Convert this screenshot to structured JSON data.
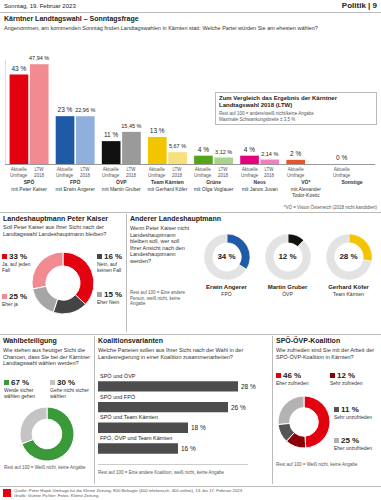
{
  "page": {
    "date": "Sonntag, 19. Februar 2023",
    "section": "Politik | 9",
    "source": "Quelle: Peter Hajek Umfrage für die Kleine Zeitung, 800 Befragte (400 telefonisch, 400 online), 13. bis 17. Februar 2023",
    "credit": "Grafik: Günter Pichler; Fotos: Kleine Zeitung"
  },
  "chart_data": [
    {
      "type": "bar",
      "title": "Kärntner Landtagswahl – Sonntagsfrage",
      "subtitle": "Angenommen, am kommenden Sonntag finden Landtagswahlen in Kärnten statt: Welche Partei würden Sie am ehesten wählen?",
      "categories": [
        "SPÖ",
        "FPÖ",
        "ÖVP",
        "Team Kärnten",
        "Grüne",
        "Neos",
        "VÖ*",
        "Sonstige"
      ],
      "candidates": [
        "mit Peter Kaiser",
        "mit Erwin Angerer",
        "mit Martin Gruber",
        "mit Gerhard Köfer",
        "mit Olga Voglauer",
        "mit Janos Juvan",
        "mit Alexander Todor-Kostic",
        null
      ],
      "series": [
        {
          "name": "Aktuelle Umfrage",
          "colors": [
            "#e3000f",
            "#1f5aa6",
            "#111111",
            "#f2c500",
            "#55a51c",
            "#e5007d",
            "#e8552a",
            "#999999"
          ],
          "values": [
            43,
            23,
            11,
            13,
            4,
            4,
            2,
            0
          ],
          "value_labels": [
            "43 %",
            "23 %",
            "11 %",
            "13 %",
            "4 %",
            "4 %",
            "2 %",
            "0 %"
          ]
        },
        {
          "name": "LTW 2018",
          "colors": [
            "#f28b91",
            "#8fb0dc",
            "#9a9a9a",
            "#f7e07a",
            "#a8d48a",
            "#f27fbf",
            "#f4a98f",
            "#cccccc"
          ],
          "values": [
            47.94,
            22.96,
            15.45,
            5.67,
            3.12,
            2.14,
            null,
            null
          ],
          "value_labels": [
            "47,94 %",
            "22,96 %",
            "15,45 %",
            "5,67 %",
            "3,12 %",
            "2,14 %",
            null,
            null
          ]
        }
      ],
      "annotations": [
        "Zum Vergleich das Ergebnis der Kärntner Landtagswahl 2018 (LTW)",
        "Rest auf 100 = andere/weiß nicht/keine Angabe",
        "Maximale Schwankungsbreite ± 3,5 %",
        "*VÖ = Vision Österreich (2018 nicht kandidiert)"
      ],
      "ylim": [
        0,
        50
      ],
      "data_labels": true,
      "tick_labels": "x",
      "grid": false
    },
    {
      "type": "pie",
      "title": "Landeshauptmann Peter Kaiser",
      "subtitle": "Soll Peter Kaiser aus Ihrer Sicht nach der Landtagswahl Landeshauptmann bleiben?",
      "categories": [
        "Ja, auf jeden Fall",
        "Eher ja",
        "Eher Nein",
        "Nein, auf keinen Fall"
      ],
      "values": [
        33,
        25,
        15,
        16
      ],
      "value_labels": [
        "33 %",
        "25 %",
        "15 %",
        "16 %"
      ],
      "colors": [
        "#e3000f",
        "#f28b91",
        "#a6a6a6",
        "#444444"
      ],
      "data_labels": true
    },
    {
      "type": "ring",
      "title": "Anderer Landeshauptmann",
      "subtitle": "Wenn Peter Kaiser nicht Landeshauptmann bleiben soll, wer soll Ihrer Ansicht nach den Landeshauptmann werden?",
      "categories": [
        "Erwin Angerer",
        "Martin Gruber",
        "Gerhard Köfer"
      ],
      "parties": [
        "FPÖ",
        "ÖVP",
        "Team Kärnten"
      ],
      "values": [
        34,
        12,
        28
      ],
      "value_labels": [
        "34 %",
        "12 %",
        "28 %"
      ],
      "colors": [
        "#1f5aa6",
        "#111111",
        "#f2c500"
      ],
      "ylim": [
        0,
        100
      ],
      "annotations": [
        "Rest auf 100 = Eine andere Person, weiß nicht, keine Angabe"
      ],
      "data_labels": true
    },
    {
      "type": "pie",
      "title": "Wahlbeteiligung",
      "subtitle": "Wie stehen aus heutiger Sicht die Chancen, dass Sie bei der Kärntner Landtagswahl wählen werden?",
      "categories": [
        "Werde sicher wählen gehen",
        "Gehe nicht sicher wählen"
      ],
      "values": [
        67,
        30
      ],
      "value_labels": [
        "67 %",
        "30 %"
      ],
      "colors": [
        "#3a9a3a",
        "#c4c4c4"
      ],
      "annotations": [
        "Rest auf 100 = Weiß nicht, keine Angabe"
      ],
      "data_labels": true
    },
    {
      "type": "bar",
      "title": "Koalitionsvarianten",
      "subtitle": "Welche Parteien sollen aus Ihrer Sicht nach der Wahl in der Landesregierung in einer Koalition zusammenarbeiten?",
      "categories": [
        "SPÖ und ÖVP",
        "SPÖ und FPÖ",
        "SPÖ und Team Kärnten",
        "FPÖ, ÖVP und Team Kärnten"
      ],
      "values": [
        28,
        26,
        18,
        16
      ],
      "value_labels": [
        "28 %",
        "26 %",
        "18 %",
        "16 %"
      ],
      "color": "#4d4d4d",
      "orientation": "horizontal",
      "xlim": [
        0,
        30
      ],
      "annotations": [
        "Rest auf 100 = Eine andere Koalition, weiß nicht, keine Angabe"
      ],
      "data_labels": true,
      "tick_labels": false,
      "grid": false
    },
    {
      "type": "pie",
      "title": "SPÖ-ÖVP-Koalition",
      "subtitle": "Wie zufrieden sind Sie mit der Arbeit der SPÖ-ÖVP-Koalition in Kärnten?",
      "categories": [
        "Eher zufrieden",
        "Eher unzufrieden",
        "Sehr unzufrieden",
        "Sehr zufrieden"
      ],
      "values": [
        46,
        25,
        11,
        12
      ],
      "value_labels": [
        "46 %",
        "25 %",
        "11 %",
        "12 %"
      ],
      "colors": [
        "#e3000f",
        "#b3b3b3",
        "#555555",
        "#8c0009"
      ],
      "annotations": [
        "Rest auf 100 = Weiß nicht, keine Angabe"
      ],
      "data_labels": true
    }
  ]
}
